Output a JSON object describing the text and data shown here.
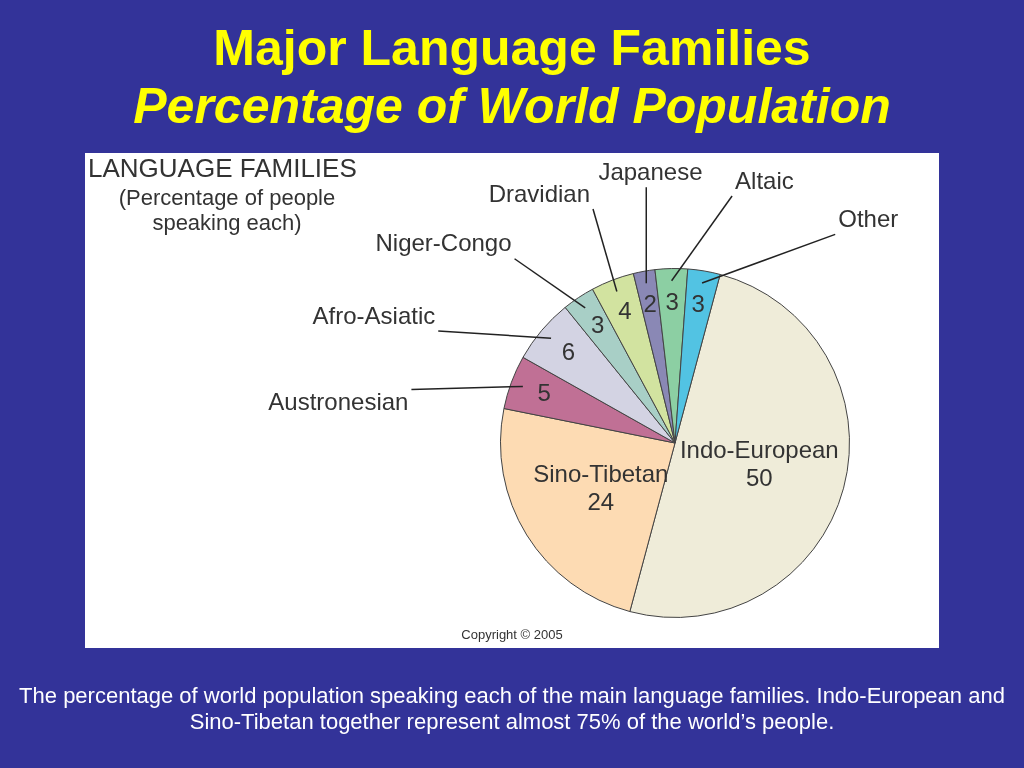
{
  "chart_data": {
    "type": "pie",
    "title": "Major Language Families",
    "subtitle": "Percentage of World Population",
    "categories": [
      "Indo-European",
      "Sino-Tibetan",
      "Austronesian",
      "Afro-Asiatic",
      "Niger-Congo",
      "Dravidian",
      "Japanese",
      "Altaic",
      "Other"
    ],
    "values": [
      50,
      24,
      5,
      6,
      3,
      4,
      2,
      3,
      3
    ],
    "colors": [
      "#efecd9",
      "#fddbb3",
      "#c07095",
      "#d3d3e3",
      "#a8cfc6",
      "#d2e3a0",
      "#8a88b5",
      "#8ccfa3",
      "#52c3e3"
    ],
    "data_labels": true,
    "annotations": [
      "LANGUAGE FAMILIES",
      "(Percentage of people speaking each)",
      "Copyright © 2005",
      "The percentage of world population speaking each of the main language families. Indo-European and Sino-Tibetan together represent almost 75% of the world’s people."
    ]
  }
}
